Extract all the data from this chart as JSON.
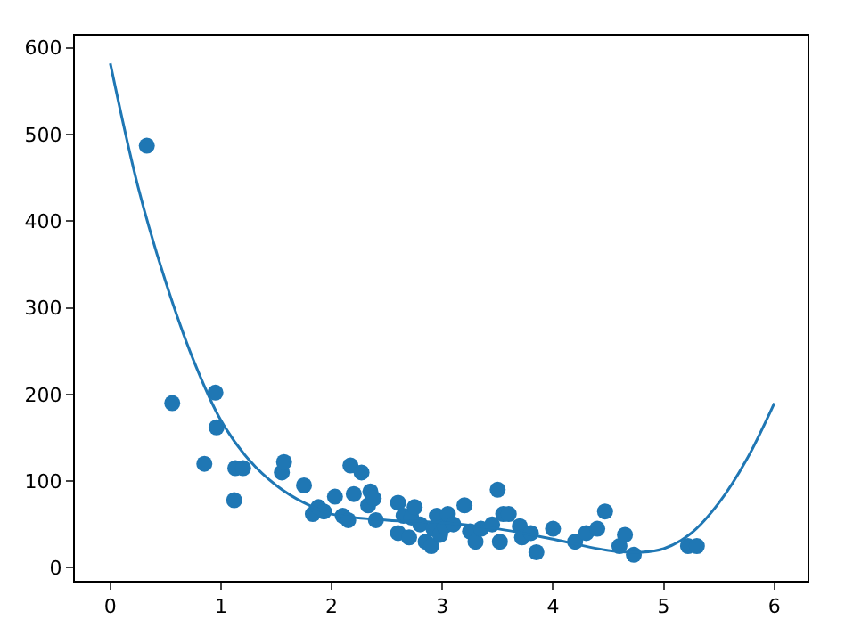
{
  "chart_data": {
    "type": "scatter",
    "xlim": [
      -0.32,
      6.3
    ],
    "ylim": [
      -15,
      614
    ],
    "xticks": [
      0,
      1,
      2,
      3,
      4,
      5,
      6
    ],
    "yticks": [
      0,
      100,
      200,
      300,
      400,
      500,
      600
    ],
    "grid": false,
    "marker": "circle",
    "series": [
      {
        "color": "#1f77b4",
        "x": [
          0.33,
          0.56,
          0.85,
          0.95,
          0.96,
          1.12,
          1.13,
          1.2,
          1.55,
          1.57,
          1.75,
          1.83,
          1.88,
          1.93,
          2.03,
          2.1,
          2.15,
          2.17,
          2.2,
          2.27,
          2.33,
          2.35,
          2.38,
          2.4,
          2.6,
          2.6,
          2.65,
          2.7,
          2.72,
          2.75,
          2.8,
          2.85,
          2.9,
          2.92,
          2.95,
          2.98,
          3.02,
          3.05,
          3.1,
          3.2,
          3.25,
          3.3,
          3.35,
          3.45,
          3.5,
          3.52,
          3.55,
          3.6,
          3.7,
          3.72,
          3.8,
          3.85,
          4.0,
          4.2,
          4.3,
          4.4,
          4.47,
          4.6,
          4.65,
          4.73,
          5.22,
          5.3
        ],
        "values": [
          487,
          190,
          120,
          202,
          162,
          78,
          115,
          115,
          110,
          122,
          95,
          62,
          70,
          65,
          82,
          60,
          55,
          118,
          85,
          110,
          72,
          88,
          80,
          55,
          75,
          40,
          60,
          35,
          58,
          70,
          50,
          30,
          25,
          45,
          60,
          38,
          48,
          62,
          50,
          72,
          42,
          30,
          45,
          50,
          90,
          30,
          62,
          62,
          48,
          35,
          40,
          18,
          45,
          30,
          40,
          45,
          65,
          25,
          38,
          15,
          25,
          25
        ]
      },
      {
        "type": "line",
        "color": "#1f77b4",
        "marker": "none",
        "line_style": "solid",
        "x": [
          0,
          0.25,
          0.5,
          0.75,
          1,
          1.25,
          1.5,
          1.75,
          2,
          2.5,
          3,
          3.5,
          4,
          4.5,
          4.8,
          5,
          5.25,
          5.5,
          5.75,
          6
        ],
        "values": [
          582,
          440,
          330,
          240,
          170,
          125,
          95,
          75,
          62,
          55,
          52,
          45,
          33,
          20,
          18,
          22,
          40,
          75,
          125,
          190
        ]
      }
    ]
  }
}
